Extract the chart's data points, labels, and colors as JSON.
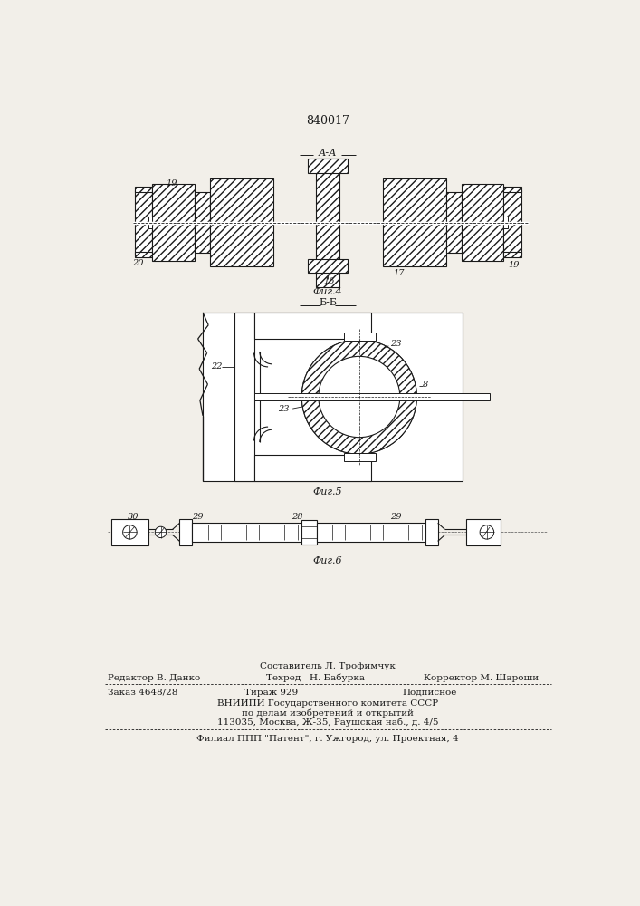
{
  "patent_number": "840017",
  "bg_color": "#f2efe9",
  "line_color": "#1a1a1a",
  "fig4_label": "А-А",
  "fig4_caption": "Фиг.4",
  "fig5_section_label": "Б-Б",
  "fig5_caption": "Фиг.5",
  "fig6_caption": "Фиг.6",
  "footer_line1_center": "Составитель Л. Трофимчук",
  "footer_line2_left": "Редактор В. Данко",
  "footer_line2_center": "Техред   Н. Бабурка",
  "footer_line2_right": "Корректор М. Шароши",
  "footer_line3_left": "Заказ 4648/28",
  "footer_line3_center": "Тираж 929",
  "footer_line3_right": "Подписное",
  "footer_line4": "ВНИИПИ Государственного комитета СССР",
  "footer_line5": "по делам изобретений и открытий",
  "footer_line6": "113035, Москва, Ж-35, Раушская наб., д. 4/5",
  "footer_line7": "Филиал ППП \"Патент\", г. Ужгород, ул. Проектная, 4"
}
